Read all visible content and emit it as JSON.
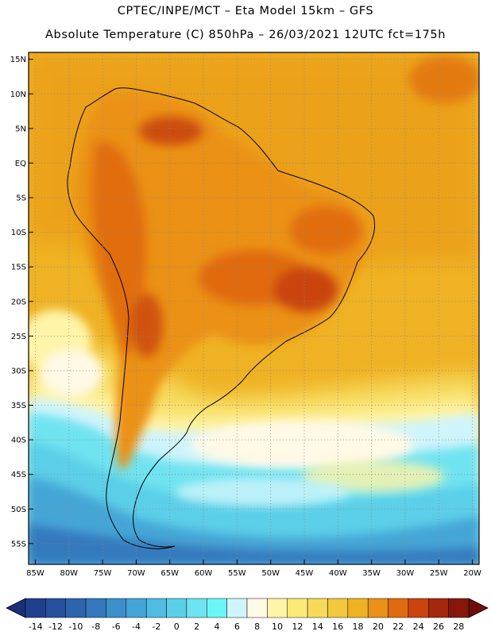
{
  "header": {
    "line1": "CPTEC/INPE/MCT –  Eta Model 15km – GFS",
    "line2": "Absolute Temperature (C) 850hPa – 26/03/2021 12UTC fct=175h"
  },
  "map": {
    "lat_range": [
      -58,
      16
    ],
    "lon_range": [
      -86,
      -19
    ],
    "lat_labels": [
      "15N",
      "10N",
      "5N",
      "EQ",
      "5S",
      "10S",
      "15S",
      "20S",
      "25S",
      "30S",
      "35S",
      "40S",
      "45S",
      "50S",
      "55S"
    ],
    "lat_values": [
      15,
      10,
      5,
      0,
      -5,
      -10,
      -15,
      -20,
      -25,
      -30,
      -35,
      -40,
      -45,
      -50,
      -55
    ],
    "lon_labels": [
      "85W",
      "80W",
      "75W",
      "70W",
      "65W",
      "60W",
      "55W",
      "50W",
      "45W",
      "40W",
      "35W",
      "30W",
      "25W",
      "20W"
    ],
    "lon_values": [
      -85,
      -80,
      -75,
      -70,
      -65,
      -60,
      -55,
      -50,
      -45,
      -40,
      -35,
      -30,
      -25,
      -20
    ],
    "grid": "dotted"
  },
  "colorbar": {
    "labels": [
      "-14",
      "-12",
      "-10",
      "-8",
      "-6",
      "-4",
      "-2",
      "0",
      "2",
      "4",
      "6",
      "8",
      "10",
      "12",
      "14",
      "16",
      "18",
      "20",
      "22",
      "24",
      "26",
      "28"
    ],
    "colors": [
      "#1f3f8f",
      "#25519e",
      "#2d64ae",
      "#3479bd",
      "#3c8fca",
      "#44a6d6",
      "#4fbce0",
      "#5ccfe8",
      "#6fe3f0",
      "#6af6f8",
      "#cff4fb",
      "#fff9e6",
      "#fff4a8",
      "#fbe978",
      "#f6da5c",
      "#f2c83c",
      "#efb224",
      "#eb9118",
      "#e06a10",
      "#c9440e",
      "#a6280c",
      "#84190b"
    ],
    "under_color": "#1b2f7a",
    "over_color": "#6e0e0a"
  }
}
